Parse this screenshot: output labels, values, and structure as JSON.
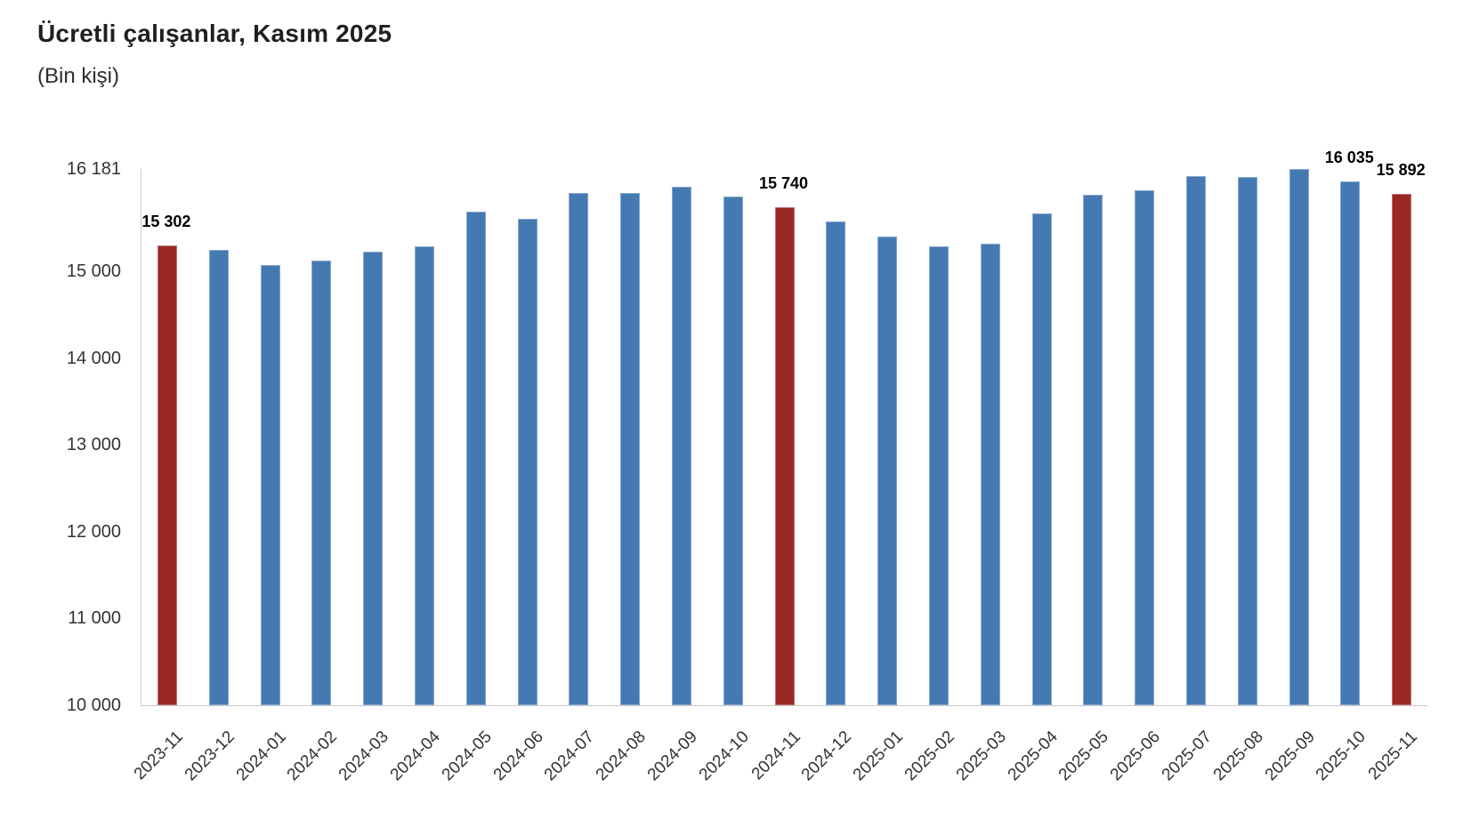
{
  "header": {
    "title": "Ücretli çalışanlar, Kasım 2025",
    "subtitle": "(Bin kişi)"
  },
  "chart_data": {
    "type": "bar",
    "title": "Ücretli çalışanlar, Kasım 2025",
    "subtitle": "(Bin kişi)",
    "unit": "Bin kişi",
    "categories": [
      "2023-11",
      "2023-12",
      "2024-01",
      "2024-02",
      "2024-03",
      "2024-04",
      "2024-05",
      "2024-06",
      "2024-07",
      "2024-08",
      "2024-09",
      "2024-10",
      "2024-11",
      "2024-12",
      "2025-01",
      "2025-02",
      "2025-03",
      "2025-04",
      "2025-05",
      "2025-06",
      "2025-07",
      "2025-08",
      "2025-09",
      "2025-10",
      "2025-11"
    ],
    "values": [
      15302,
      15245,
      15070,
      15130,
      15230,
      15290,
      15690,
      15610,
      15905,
      15900,
      15980,
      15860,
      15740,
      15575,
      15405,
      15290,
      15320,
      15665,
      15885,
      15930,
      16100,
      16085,
      16181,
      16035,
      15892
    ],
    "highlight_indices": [
      0,
      12,
      24
    ],
    "data_labels": [
      {
        "index": 0,
        "text": "15 302"
      },
      {
        "index": 12,
        "text": "15 740"
      },
      {
        "index": 23,
        "text": "16 035"
      },
      {
        "index": 24,
        "text": "15 892"
      }
    ],
    "y_ticks": [
      {
        "value": 16181,
        "label": "16 181"
      },
      {
        "value": 15000,
        "label": "15 000"
      },
      {
        "value": 14000,
        "label": "14 000"
      },
      {
        "value": 13000,
        "label": "13 000"
      },
      {
        "value": 12000,
        "label": "12 000"
      },
      {
        "value": 11000,
        "label": "11 000"
      },
      {
        "value": 10000,
        "label": "10 000"
      }
    ],
    "ylim": [
      10000,
      16181
    ],
    "grid": false,
    "legend": "none",
    "xlabel": "",
    "ylabel": "",
    "colors": {
      "bar": "#4579b2",
      "highlight": "#9c2824",
      "axis_line": "#cccccc",
      "tick_text": "#333333",
      "data_label_text": "#000000"
    }
  }
}
